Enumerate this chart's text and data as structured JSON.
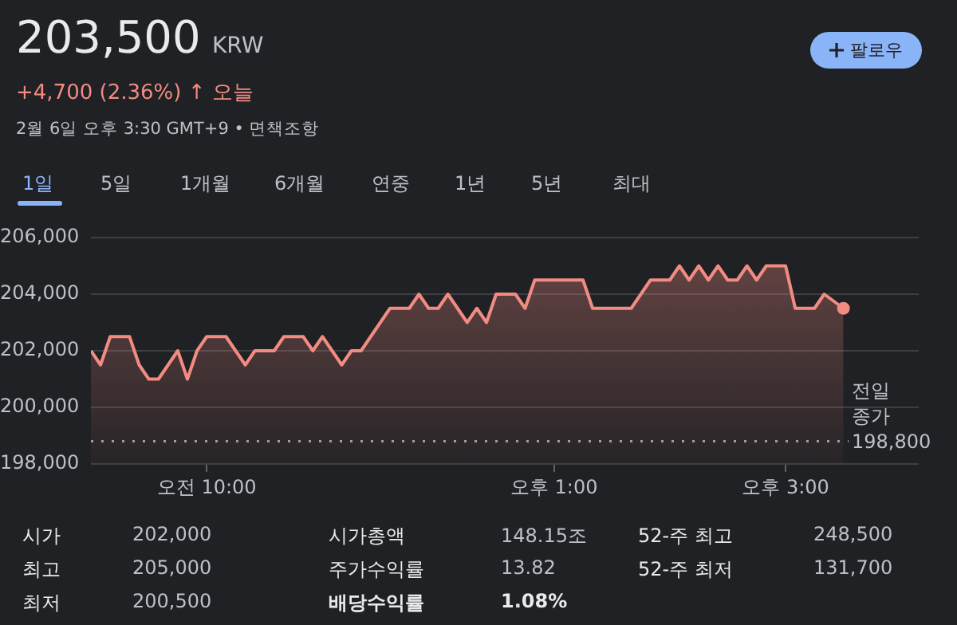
{
  "chart_data": {
    "type": "area",
    "title": "203,500",
    "annotations": [
      "KRW",
      "+4,700 (2.36%) ↑ 오늘",
      "2월 6일 오후 3:30 GMT+9 • 면책조항",
      "팔로우",
      "1일",
      "5일",
      "1개월",
      "6개월",
      "연중",
      "1년",
      "5년",
      "최대",
      "시가",
      "202,000",
      "시가총액",
      "148.15조",
      "52-주 최고",
      "248,500",
      "최고",
      "205,000",
      "주가수익률",
      "13.82",
      "52-주 최저",
      "131,700",
      "최저",
      "200,500",
      "배당수익률",
      "1.08%"
    ],
    "x": [
      "--02-06T09:00",
      "--02-06T09:05",
      "--02-06T09:10",
      "--02-06T09:20",
      "--02-06T09:25",
      "--02-06T09:30",
      "--02-06T09:35",
      "--02-06T09:45",
      "--02-06T09:50",
      "--02-06T09:55",
      "--02-06T10:00",
      "--02-06T10:10",
      "--02-06T10:20",
      "--02-06T10:25",
      "--02-06T10:35",
      "--02-06T10:40",
      "--02-06T10:50",
      "--02-06T10:55",
      "--02-06T11:00",
      "--02-06T11:10",
      "--02-06T11:15",
      "--02-06T11:20",
      "--02-06T11:35",
      "--02-06T11:45",
      "--02-06T11:50",
      "--02-06T11:55",
      "--02-06T12:00",
      "--02-06T12:05",
      "--02-06T12:15",
      "--02-06T12:20",
      "--02-06T12:25",
      "--02-06T12:30",
      "--02-06T12:40",
      "--02-06T12:45",
      "--02-06T12:50",
      "--02-06T13:15",
      "--02-06T13:20",
      "--02-06T13:40",
      "--02-06T13:50",
      "--02-06T14:00",
      "--02-06T14:05",
      "--02-06T14:10",
      "--02-06T14:15",
      "--02-06T14:20",
      "--02-06T14:25",
      "--02-06T14:30",
      "--02-06T14:35",
      "--02-06T14:40",
      "--02-06T14:45",
      "--02-06T14:50",
      "--02-06T15:00",
      "--02-06T15:05",
      "--02-06T15:15",
      "--02-06T15:20",
      "--02-06T15:30"
    ],
    "series": [
      {
        "color": "#f28b82",
        "values": [
          202000,
          201500,
          202500,
          202500,
          201500,
          201000,
          201000,
          202000,
          201000,
          202000,
          202500,
          202500,
          201500,
          202000,
          202000,
          202500,
          202500,
          202000,
          202500,
          201500,
          202000,
          202000,
          203500,
          203500,
          204000,
          203500,
          203500,
          204000,
          203000,
          203500,
          203000,
          204000,
          204000,
          203500,
          204500,
          204500,
          203500,
          203500,
          204500,
          204500,
          205000,
          204500,
          205000,
          204500,
          205000,
          204500,
          204500,
          205000,
          204500,
          205000,
          205000,
          203500,
          203500,
          204000,
          203500
        ]
      }
    ],
    "xlim": [
      "--02-06T09:00",
      "--02-06T16:09"
    ],
    "xticks": [
      {
        "value": "--02-06T10:00",
        "label": "오전 10:00"
      },
      {
        "value": "--02-06T13:00",
        "label": "오후 1:00"
      },
      {
        "value": "--02-06T15:00",
        "label": "오후 3:00"
      }
    ],
    "ylim": [
      198000,
      206000
    ],
    "yticks": [
      {
        "value": 198000,
        "label": "198,000"
      },
      {
        "value": 200000,
        "label": "200,000"
      },
      {
        "value": 202000,
        "label": "202,000"
      },
      {
        "value": 204000,
        "label": "204,000"
      },
      {
        "value": 206000,
        "label": "206,000"
      }
    ],
    "ref_lines": [
      {
        "axis": "y",
        "value": 198800,
        "label": "전일 종가 198,800",
        "line_style": "dotted"
      }
    ],
    "grid": "y"
  }
}
